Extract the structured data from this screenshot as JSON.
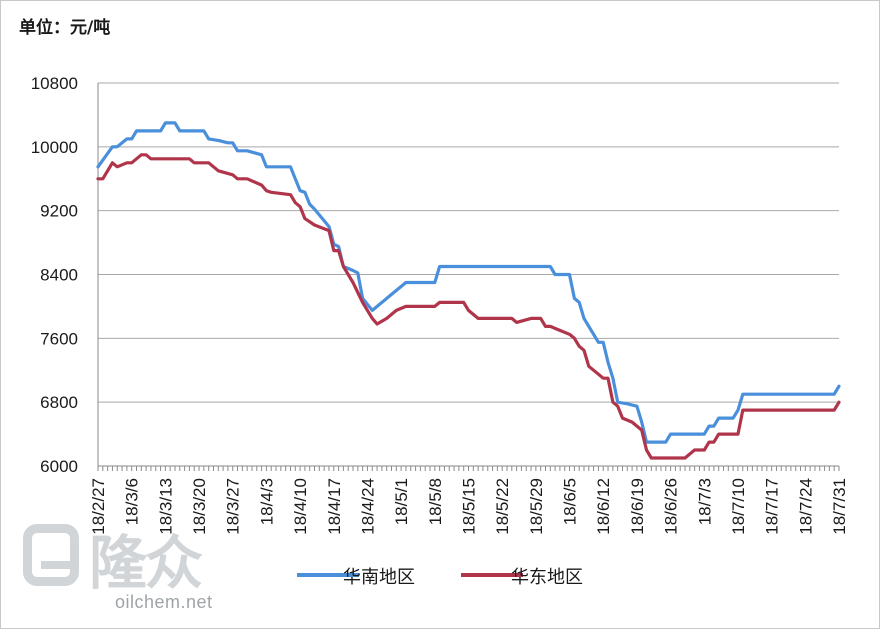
{
  "unit_label": "单位：元/吨",
  "watermark": {
    "cn": "隆众",
    "en": "oilchem.net"
  },
  "chart_data": {
    "type": "line",
    "title": "",
    "xlabel": "",
    "ylabel": "",
    "ylim": [
      6000,
      10800
    ],
    "yticks": [
      6000,
      6800,
      7600,
      8400,
      9200,
      10000,
      10800
    ],
    "xlim": [
      0,
      154
    ],
    "xticks": [
      {
        "day": 0,
        "label": "18/2/27"
      },
      {
        "day": 7,
        "label": "18/3/6"
      },
      {
        "day": 14,
        "label": "18/3/13"
      },
      {
        "day": 21,
        "label": "18/3/20"
      },
      {
        "day": 28,
        "label": "18/3/27"
      },
      {
        "day": 35,
        "label": "18/4/3"
      },
      {
        "day": 42,
        "label": "18/4/10"
      },
      {
        "day": 49,
        "label": "18/4/17"
      },
      {
        "day": 56,
        "label": "18/4/24"
      },
      {
        "day": 63,
        "label": "18/5/1"
      },
      {
        "day": 70,
        "label": "18/5/8"
      },
      {
        "day": 77,
        "label": "18/5/15"
      },
      {
        "day": 84,
        "label": "18/5/22"
      },
      {
        "day": 91,
        "label": "18/5/29"
      },
      {
        "day": 98,
        "label": "18/6/5"
      },
      {
        "day": 105,
        "label": "18/6/12"
      },
      {
        "day": 112,
        "label": "18/6/19"
      },
      {
        "day": 119,
        "label": "18/6/26"
      },
      {
        "day": 126,
        "label": "18/7/3"
      },
      {
        "day": 133,
        "label": "18/7/10"
      },
      {
        "day": 140,
        "label": "18/7/17"
      },
      {
        "day": 147,
        "label": "18/7/24"
      },
      {
        "day": 154,
        "label": "18/7/31"
      }
    ],
    "grid": true,
    "legend_position": "bottom",
    "series": [
      {
        "name": "华南地区",
        "color": "#4a8fdb",
        "points": [
          [
            0,
            9750
          ],
          [
            3,
            10000
          ],
          [
            4,
            10000
          ],
          [
            6,
            10100
          ],
          [
            7,
            10100
          ],
          [
            8,
            10200
          ],
          [
            13,
            10200
          ],
          [
            14,
            10300
          ],
          [
            16,
            10300
          ],
          [
            17,
            10200
          ],
          [
            22,
            10200
          ],
          [
            23,
            10100
          ],
          [
            25,
            10080
          ],
          [
            27,
            10050
          ],
          [
            28,
            10050
          ],
          [
            29,
            9950
          ],
          [
            31,
            9950
          ],
          [
            34,
            9900
          ],
          [
            35,
            9750
          ],
          [
            40,
            9750
          ],
          [
            41,
            9600
          ],
          [
            42,
            9450
          ],
          [
            43,
            9430
          ],
          [
            44,
            9280
          ],
          [
            45,
            9220
          ],
          [
            48,
            9000
          ],
          [
            49,
            8780
          ],
          [
            50,
            8750
          ],
          [
            51,
            8500
          ],
          [
            53,
            8450
          ],
          [
            54,
            8420
          ],
          [
            55,
            8100
          ],
          [
            57,
            7950
          ],
          [
            59,
            8050
          ],
          [
            61,
            8150
          ],
          [
            63,
            8250
          ],
          [
            64,
            8300
          ],
          [
            70,
            8300
          ],
          [
            71,
            8500
          ],
          [
            94,
            8500
          ],
          [
            95,
            8400
          ],
          [
            98,
            8400
          ],
          [
            99,
            8100
          ],
          [
            100,
            8050
          ],
          [
            101,
            7850
          ],
          [
            102,
            7750
          ],
          [
            103,
            7650
          ],
          [
            104,
            7550
          ],
          [
            105,
            7550
          ],
          [
            106,
            7300
          ],
          [
            107,
            7100
          ],
          [
            108,
            6800
          ],
          [
            110,
            6780
          ],
          [
            112,
            6750
          ],
          [
            113,
            6550
          ],
          [
            114,
            6300
          ],
          [
            118,
            6300
          ],
          [
            119,
            6400
          ],
          [
            125,
            6400
          ],
          [
            126,
            6400
          ],
          [
            127,
            6500
          ],
          [
            128,
            6500
          ],
          [
            129,
            6600
          ],
          [
            132,
            6600
          ],
          [
            133,
            6700
          ],
          [
            134,
            6900
          ],
          [
            153,
            6900
          ],
          [
            154,
            7000
          ]
        ]
      },
      {
        "name": "华东地区",
        "color": "#b0354a",
        "points": [
          [
            0,
            9600
          ],
          [
            1,
            9600
          ],
          [
            3,
            9800
          ],
          [
            4,
            9750
          ],
          [
            6,
            9800
          ],
          [
            7,
            9800
          ],
          [
            8,
            9850
          ],
          [
            9,
            9900
          ],
          [
            10,
            9900
          ],
          [
            11,
            9850
          ],
          [
            19,
            9850
          ],
          [
            20,
            9800
          ],
          [
            23,
            9800
          ],
          [
            24,
            9750
          ],
          [
            25,
            9700
          ],
          [
            28,
            9650
          ],
          [
            29,
            9600
          ],
          [
            31,
            9600
          ],
          [
            34,
            9520
          ],
          [
            35,
            9450
          ],
          [
            36,
            9430
          ],
          [
            40,
            9400
          ],
          [
            41,
            9300
          ],
          [
            42,
            9250
          ],
          [
            43,
            9100
          ],
          [
            45,
            9020
          ],
          [
            48,
            8950
          ],
          [
            49,
            8700
          ],
          [
            50,
            8700
          ],
          [
            51,
            8500
          ],
          [
            53,
            8300
          ],
          [
            55,
            8050
          ],
          [
            57,
            7850
          ],
          [
            58,
            7780
          ],
          [
            60,
            7850
          ],
          [
            62,
            7950
          ],
          [
            64,
            8000
          ],
          [
            70,
            8000
          ],
          [
            71,
            8050
          ],
          [
            76,
            8050
          ],
          [
            77,
            7950
          ],
          [
            78,
            7900
          ],
          [
            79,
            7850
          ],
          [
            86,
            7850
          ],
          [
            87,
            7800
          ],
          [
            90,
            7850
          ],
          [
            92,
            7850
          ],
          [
            93,
            7750
          ],
          [
            94,
            7750
          ],
          [
            96,
            7700
          ],
          [
            98,
            7650
          ],
          [
            99,
            7600
          ],
          [
            100,
            7500
          ],
          [
            101,
            7450
          ],
          [
            102,
            7250
          ],
          [
            104,
            7150
          ],
          [
            105,
            7100
          ],
          [
            106,
            7100
          ],
          [
            107,
            6800
          ],
          [
            108,
            6750
          ],
          [
            109,
            6600
          ],
          [
            111,
            6550
          ],
          [
            112,
            6500
          ],
          [
            113,
            6450
          ],
          [
            114,
            6200
          ],
          [
            115,
            6100
          ],
          [
            122,
            6100
          ],
          [
            123,
            6150
          ],
          [
            124,
            6200
          ],
          [
            126,
            6200
          ],
          [
            127,
            6300
          ],
          [
            128,
            6300
          ],
          [
            129,
            6400
          ],
          [
            133,
            6400
          ],
          [
            134,
            6700
          ],
          [
            153,
            6700
          ],
          [
            154,
            6800
          ]
        ]
      }
    ]
  }
}
